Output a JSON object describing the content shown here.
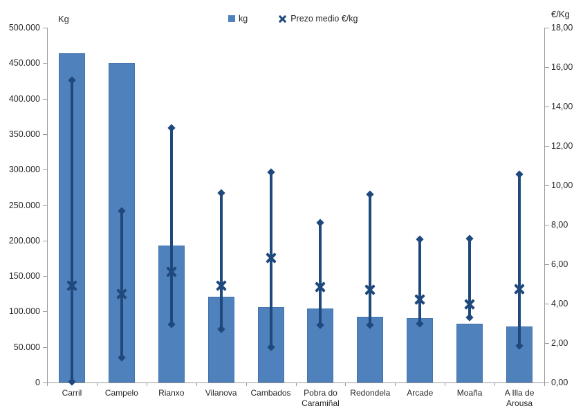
{
  "chart_data": {
    "type": "bar",
    "subtype": "combo-bar-with-hilo-price-markers",
    "title": "",
    "categories": [
      "Carril",
      "Campelo",
      "Rianxo",
      "Vilanova",
      "Cambados",
      "Pobra do Caramiñal",
      "Redondela",
      "Arcade",
      "Moaña",
      "A Illa de Arousa"
    ],
    "series": [
      {
        "name": "kg",
        "type": "bar",
        "axis": "left",
        "values": [
          464000,
          450000,
          193000,
          121000,
          106000,
          104000,
          93000,
          91000,
          83000,
          79000
        ]
      },
      {
        "name": "Prezo medio €/kg",
        "type": "scatter-x",
        "axis": "right",
        "values": [
          4.9,
          4.5,
          5.6,
          4.9,
          6.3,
          4.85,
          4.7,
          4.2,
          3.95,
          4.75
        ]
      }
    ],
    "price_range": {
      "high": [
        15.35,
        8.7,
        12.9,
        9.6,
        10.65,
        8.1,
        9.55,
        7.25,
        7.3,
        10.55
      ],
      "low": [
        0.05,
        1.25,
        2.95,
        2.7,
        1.8,
        2.9,
        2.9,
        3.0,
        3.3,
        1.85
      ]
    },
    "y_left": {
      "title": "Kg",
      "min": 0,
      "max": 500000,
      "step": 50000,
      "tick_labels": [
        "500.000",
        "450.000",
        "400.000",
        "350.000",
        "300.000",
        "250.000",
        "200.000",
        "150.000",
        "100.000",
        "50.000",
        "0"
      ]
    },
    "y_right": {
      "title": "€/Kg",
      "min": 0,
      "max": 18,
      "step": 2,
      "tick_labels": [
        "18,00",
        "16,00",
        "14,00",
        "12,00",
        "10,00",
        "8,00",
        "6,00",
        "4,00",
        "2,00",
        "0,00"
      ]
    },
    "legend": [
      {
        "label": "kg",
        "marker": "square"
      },
      {
        "label": "Prezo medio €/kg",
        "marker": "x"
      }
    ],
    "grid": false,
    "legend_position": "top-center",
    "colors": {
      "bar_fill": "#4F81BD",
      "bar_border": "#4374AC",
      "marker_line": "#1F497D",
      "axis": "#9A9A9A",
      "text": "#262626"
    }
  }
}
